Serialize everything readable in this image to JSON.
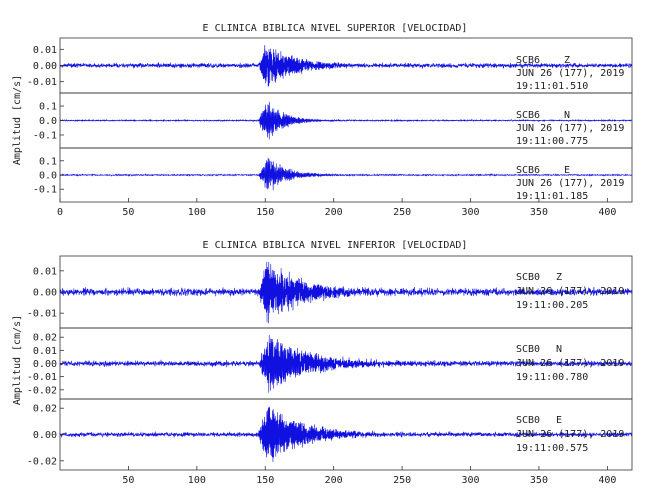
{
  "chart_data": [
    {
      "type": "line",
      "title": "E CLINICA BIBLICA NIVEL SUPERIOR [VELOCIDAD]",
      "ylabel": "Amplitud [cm/s]",
      "xlim": [
        0,
        418
      ],
      "xticks": [
        0,
        50,
        100,
        150,
        200,
        250,
        300,
        350,
        400
      ],
      "show_xtick_labels": true,
      "traces": [
        {
          "station": "SCB6",
          "component": "Z",
          "date": "JUN 26 (177), 2019",
          "time": "19:11:01.510",
          "ylim": [
            -0.017,
            0.017
          ],
          "yticks": [
            0.01,
            0.0,
            -0.01
          ],
          "ytick_labels": [
            "0.01",
            "0.00",
            "-0.01"
          ],
          "noise": 0.0012,
          "peak": 0.015,
          "onset": 145,
          "peak_at": 150,
          "decay": 22,
          "freq": 2.2,
          "seed": 11
        },
        {
          "station": "SCB6",
          "component": "N",
          "date": "JUN 26 (177), 2019",
          "time": "19:11:00.775",
          "ylim": [
            -0.19,
            0.19
          ],
          "yticks": [
            0.1,
            0.0,
            -0.1
          ],
          "ytick_labels": [
            "0.1",
            "0.0",
            "-0.1"
          ],
          "noise": 0.004,
          "peak": 0.17,
          "onset": 145,
          "peak_at": 151,
          "decay": 12,
          "freq": 1.6,
          "seed": 23
        },
        {
          "station": "SCB6",
          "component": "E",
          "date": "JUN 26 (177), 2019",
          "time": "19:11:01.185",
          "ylim": [
            -0.19,
            0.19
          ],
          "yticks": [
            0.1,
            0.0,
            -0.1
          ],
          "ytick_labels": [
            "0.1",
            "0.0",
            "-0.1"
          ],
          "noise": 0.004,
          "peak": 0.14,
          "onset": 145,
          "peak_at": 152,
          "decay": 14,
          "freq": 1.5,
          "seed": 37
        }
      ]
    },
    {
      "type": "line",
      "title": "E CLINICA BIBLICA NIVEL INFERIOR [VELOCIDAD]",
      "ylabel": "Amplitud [cm/s]",
      "xlim": [
        0,
        418
      ],
      "xticks": [
        50,
        100,
        150,
        200,
        250,
        300,
        350,
        400
      ],
      "show_xtick_labels": true,
      "traces": [
        {
          "station": "SCB0",
          "component": "Z",
          "date": "JUN 26 (177), 2019",
          "time": "19:11:00.205",
          "ylim": [
            -0.017,
            0.017
          ],
          "yticks": [
            0.01,
            0.0,
            -0.01
          ],
          "ytick_labels": [
            "0.01",
            "0.00",
            "-0.01"
          ],
          "noise": 0.0015,
          "peak": 0.016,
          "onset": 145,
          "peak_at": 151,
          "decay": 26,
          "freq": 2.0,
          "seed": 51
        },
        {
          "station": "SCB0",
          "component": "N",
          "date": "JUN 26 (177), 2019",
          "time": "19:11:00.780",
          "ylim": [
            -0.027,
            0.027
          ],
          "yticks": [
            0.02,
            0.01,
            0.0,
            -0.01,
            -0.02
          ],
          "ytick_labels": [
            "0.02",
            "0.01",
            "0.00",
            "-0.01",
            "-0.02"
          ],
          "noise": 0.0018,
          "peak": 0.024,
          "onset": 145,
          "peak_at": 153,
          "decay": 30,
          "freq": 1.8,
          "seed": 67
        },
        {
          "station": "SCB0",
          "component": "E",
          "date": "JUN 26 (177), 2019",
          "time": "19:11:00.575",
          "ylim": [
            -0.027,
            0.027
          ],
          "yticks": [
            0.02,
            0.0,
            -0.02
          ],
          "ytick_labels": [
            "0.02",
            "0.00",
            "-0.02"
          ],
          "noise": 0.0015,
          "peak": 0.025,
          "onset": 145,
          "peak_at": 151,
          "decay": 26,
          "freq": 1.9,
          "seed": 83
        }
      ]
    }
  ]
}
